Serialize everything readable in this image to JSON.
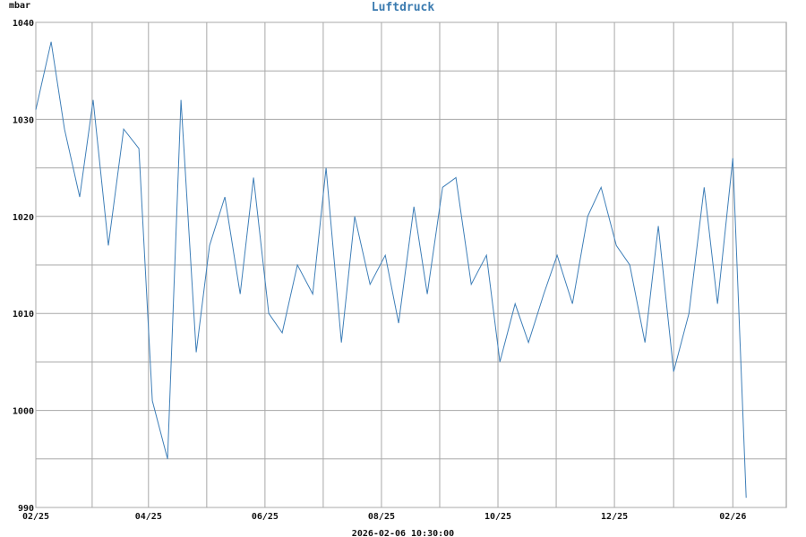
{
  "chart_data": {
    "type": "line",
    "title": "Luftdruck",
    "ylabel": "mbar",
    "ylim": [
      990,
      1040
    ],
    "yticks": [
      990,
      1000,
      1010,
      1020,
      1030,
      1040
    ],
    "xlim": [
      "2025-02-25",
      "2026-03-25"
    ],
    "xticks": [
      {
        "date": "2025-02-25",
        "label": "02/25"
      },
      {
        "date": "2025-04-25",
        "label": "04/25"
      },
      {
        "date": "2025-06-25",
        "label": "06/25"
      },
      {
        "date": "2025-08-25",
        "label": "08/25"
      },
      {
        "date": "2025-10-25",
        "label": "10/25"
      },
      {
        "date": "2025-12-25",
        "label": "12/25"
      },
      {
        "date": "2026-02-25",
        "label": "02/26"
      }
    ],
    "grid": true,
    "timestamp": "2026-02-06 10:30:00",
    "series_color": "#3f7fb8",
    "series": [
      {
        "x": [
          "2025-02-25",
          "2025-03-05",
          "2025-03-12",
          "2025-03-20",
          "2025-03-27",
          "2025-04-04",
          "2025-04-12",
          "2025-04-20",
          "2025-04-27",
          "2025-05-05",
          "2025-05-12",
          "2025-05-20",
          "2025-05-27",
          "2025-06-04",
          "2025-06-12",
          "2025-06-19",
          "2025-06-27",
          "2025-07-04",
          "2025-07-12",
          "2025-07-20",
          "2025-07-27",
          "2025-08-04",
          "2025-08-11",
          "2025-08-19",
          "2025-08-27",
          "2025-09-03",
          "2025-09-11",
          "2025-09-18",
          "2025-09-26",
          "2025-10-03",
          "2025-10-11",
          "2025-10-19",
          "2025-10-26",
          "2025-11-03",
          "2025-11-10",
          "2025-11-18",
          "2025-11-25",
          "2025-12-03",
          "2025-12-11",
          "2025-12-18",
          "2025-12-26",
          "2026-01-02",
          "2026-01-10",
          "2026-01-17",
          "2026-01-25",
          "2026-02-02",
          "2026-02-10",
          "2026-02-17",
          "2026-02-25",
          "2026-03-04"
        ],
        "values": [
          1031,
          1038,
          1029,
          1022,
          1032,
          1017,
          1029,
          1027,
          1001,
          995,
          1032,
          1006,
          1017,
          1022,
          1012,
          1024,
          1010,
          1008,
          1015,
          1012,
          1025,
          1007,
          1020,
          1013,
          1016,
          1009,
          1021,
          1012,
          1023,
          1024,
          1013,
          1016,
          1005,
          1011,
          1007,
          1012,
          1016,
          1011,
          1020,
          1023,
          1017,
          1015,
          1007,
          1019,
          1004,
          1010,
          1023,
          1011,
          1026,
          991
        ]
      }
    ]
  }
}
